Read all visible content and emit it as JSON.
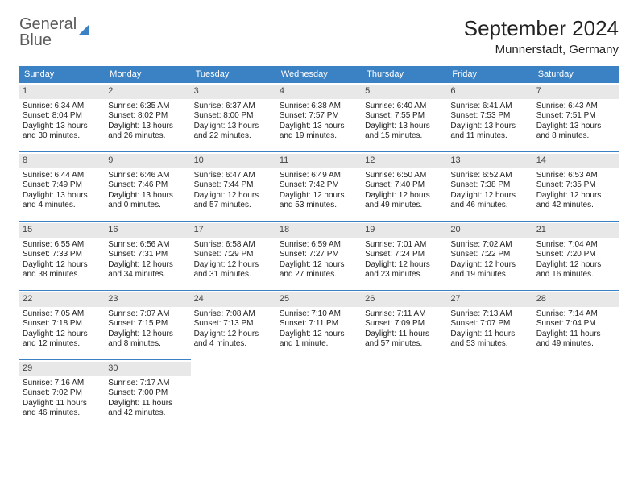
{
  "logo": {
    "line1": "General",
    "line2": "Blue"
  },
  "title": "September 2024",
  "location": "Munnerstadt, Germany",
  "colors": {
    "accent": "#3b82c4",
    "daybg": "#e8e8e8",
    "text": "#222222"
  },
  "daynames": [
    "Sunday",
    "Monday",
    "Tuesday",
    "Wednesday",
    "Thursday",
    "Friday",
    "Saturday"
  ],
  "weeks": [
    [
      {
        "d": "1",
        "sr": "6:34 AM",
        "ss": "8:04 PM",
        "dl": "13 hours and 30 minutes."
      },
      {
        "d": "2",
        "sr": "6:35 AM",
        "ss": "8:02 PM",
        "dl": "13 hours and 26 minutes."
      },
      {
        "d": "3",
        "sr": "6:37 AM",
        "ss": "8:00 PM",
        "dl": "13 hours and 22 minutes."
      },
      {
        "d": "4",
        "sr": "6:38 AM",
        "ss": "7:57 PM",
        "dl": "13 hours and 19 minutes."
      },
      {
        "d": "5",
        "sr": "6:40 AM",
        "ss": "7:55 PM",
        "dl": "13 hours and 15 minutes."
      },
      {
        "d": "6",
        "sr": "6:41 AM",
        "ss": "7:53 PM",
        "dl": "13 hours and 11 minutes."
      },
      {
        "d": "7",
        "sr": "6:43 AM",
        "ss": "7:51 PM",
        "dl": "13 hours and 8 minutes."
      }
    ],
    [
      {
        "d": "8",
        "sr": "6:44 AM",
        "ss": "7:49 PM",
        "dl": "13 hours and 4 minutes."
      },
      {
        "d": "9",
        "sr": "6:46 AM",
        "ss": "7:46 PM",
        "dl": "13 hours and 0 minutes."
      },
      {
        "d": "10",
        "sr": "6:47 AM",
        "ss": "7:44 PM",
        "dl": "12 hours and 57 minutes."
      },
      {
        "d": "11",
        "sr": "6:49 AM",
        "ss": "7:42 PM",
        "dl": "12 hours and 53 minutes."
      },
      {
        "d": "12",
        "sr": "6:50 AM",
        "ss": "7:40 PM",
        "dl": "12 hours and 49 minutes."
      },
      {
        "d": "13",
        "sr": "6:52 AM",
        "ss": "7:38 PM",
        "dl": "12 hours and 46 minutes."
      },
      {
        "d": "14",
        "sr": "6:53 AM",
        "ss": "7:35 PM",
        "dl": "12 hours and 42 minutes."
      }
    ],
    [
      {
        "d": "15",
        "sr": "6:55 AM",
        "ss": "7:33 PM",
        "dl": "12 hours and 38 minutes."
      },
      {
        "d": "16",
        "sr": "6:56 AM",
        "ss": "7:31 PM",
        "dl": "12 hours and 34 minutes."
      },
      {
        "d": "17",
        "sr": "6:58 AM",
        "ss": "7:29 PM",
        "dl": "12 hours and 31 minutes."
      },
      {
        "d": "18",
        "sr": "6:59 AM",
        "ss": "7:27 PM",
        "dl": "12 hours and 27 minutes."
      },
      {
        "d": "19",
        "sr": "7:01 AM",
        "ss": "7:24 PM",
        "dl": "12 hours and 23 minutes."
      },
      {
        "d": "20",
        "sr": "7:02 AM",
        "ss": "7:22 PM",
        "dl": "12 hours and 19 minutes."
      },
      {
        "d": "21",
        "sr": "7:04 AM",
        "ss": "7:20 PM",
        "dl": "12 hours and 16 minutes."
      }
    ],
    [
      {
        "d": "22",
        "sr": "7:05 AM",
        "ss": "7:18 PM",
        "dl": "12 hours and 12 minutes."
      },
      {
        "d": "23",
        "sr": "7:07 AM",
        "ss": "7:15 PM",
        "dl": "12 hours and 8 minutes."
      },
      {
        "d": "24",
        "sr": "7:08 AM",
        "ss": "7:13 PM",
        "dl": "12 hours and 4 minutes."
      },
      {
        "d": "25",
        "sr": "7:10 AM",
        "ss": "7:11 PM",
        "dl": "12 hours and 1 minute."
      },
      {
        "d": "26",
        "sr": "7:11 AM",
        "ss": "7:09 PM",
        "dl": "11 hours and 57 minutes."
      },
      {
        "d": "27",
        "sr": "7:13 AM",
        "ss": "7:07 PM",
        "dl": "11 hours and 53 minutes."
      },
      {
        "d": "28",
        "sr": "7:14 AM",
        "ss": "7:04 PM",
        "dl": "11 hours and 49 minutes."
      }
    ],
    [
      {
        "d": "29",
        "sr": "7:16 AM",
        "ss": "7:02 PM",
        "dl": "11 hours and 46 minutes."
      },
      {
        "d": "30",
        "sr": "7:17 AM",
        "ss": "7:00 PM",
        "dl": "11 hours and 42 minutes."
      },
      null,
      null,
      null,
      null,
      null
    ]
  ],
  "labels": {
    "sunrise": "Sunrise: ",
    "sunset": "Sunset: ",
    "daylight": "Daylight: "
  }
}
